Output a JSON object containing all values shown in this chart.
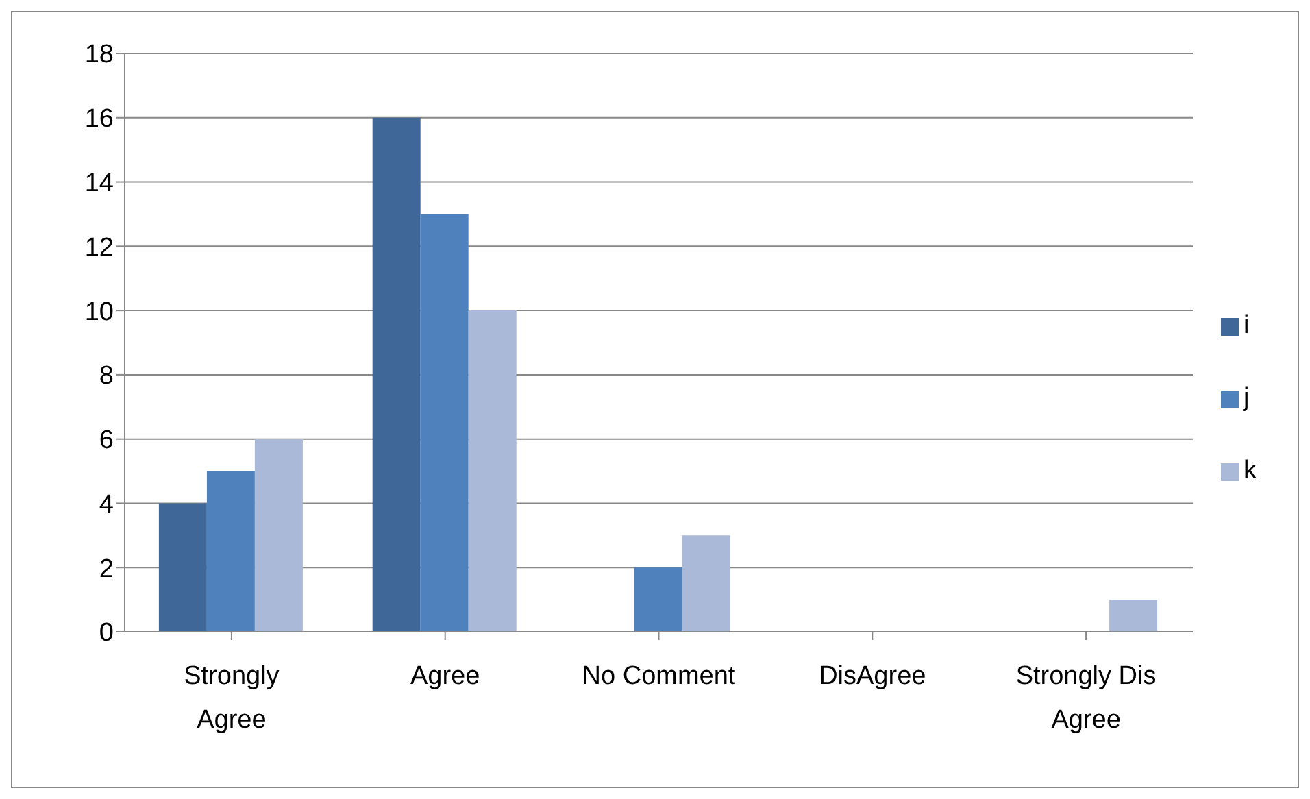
{
  "chart_data": {
    "type": "bar",
    "categories": [
      "Strongly Agree",
      "Agree",
      "No Comment",
      "DisAgree",
      "Strongly Dis Agree"
    ],
    "series": [
      {
        "name": "i",
        "color": "#3f6797",
        "values": [
          4,
          16,
          0,
          0,
          0
        ]
      },
      {
        "name": "j",
        "color": "#4f81bd",
        "values": [
          5,
          13,
          2,
          0,
          0
        ]
      },
      {
        "name": "k",
        "color": "#aab9d8",
        "values": [
          6,
          10,
          3,
          0,
          1
        ]
      }
    ],
    "ylim": [
      0,
      18
    ],
    "yticks": [
      0,
      2,
      4,
      6,
      8,
      10,
      12,
      14,
      16,
      18
    ],
    "grid": "y",
    "legend": "right"
  }
}
